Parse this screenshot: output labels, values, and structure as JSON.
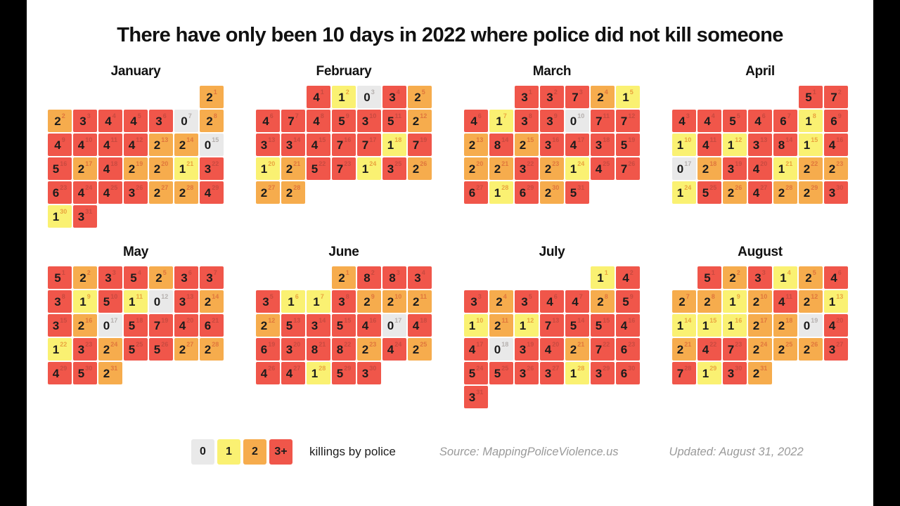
{
  "title": "There have only been 10 days in 2022 where police did not kill someone",
  "legend": {
    "items": [
      {
        "label": "0",
        "category": "zero"
      },
      {
        "label": "1",
        "category": "one"
      },
      {
        "label": "2",
        "category": "two"
      },
      {
        "label": "3+",
        "category": "three_plus"
      }
    ],
    "label": "killings by police"
  },
  "footer": {
    "source": "Source: MappingPoliceViolence.us",
    "updated": "Updated: August 31, 2022"
  },
  "colors": {
    "zero": "#E9E9E9",
    "one": "#FAF172",
    "two": "#F6AC4D",
    "three_plus": "#F0564A",
    "sup_zero": "#B5B0AE",
    "sup_one": "#E9A33E",
    "sup_two": "#E0763C",
    "sup_three_plus": "#C94A40"
  },
  "chart_data": {
    "type": "heatmap",
    "subtype": "calendar-heatmap",
    "title": "There have only been 10 days in 2022 where police did not kill someone",
    "unit": "killings by police per day",
    "year": 2022,
    "week_starts_on": "Sunday",
    "bins": [
      {
        "label": "0",
        "category": "zero"
      },
      {
        "label": "1",
        "category": "one"
      },
      {
        "label": "2",
        "category": "two"
      },
      {
        "label": "3+",
        "category": "three_plus"
      }
    ],
    "months": [
      {
        "name": "January",
        "first_day_col": 6,
        "days_in_month": 31,
        "values": [
          2,
          2,
          3,
          4,
          4,
          3,
          0,
          2,
          4,
          4,
          4,
          4,
          2,
          2,
          0,
          5,
          2,
          4,
          2,
          2,
          1,
          3,
          6,
          4,
          4,
          3,
          2,
          2,
          4,
          1,
          3
        ]
      },
      {
        "name": "February",
        "first_day_col": 2,
        "days_in_month": 28,
        "values": [
          4,
          1,
          0,
          3,
          2,
          4,
          7,
          4,
          5,
          3,
          5,
          2,
          3,
          3,
          4,
          7,
          7,
          1,
          7,
          1,
          2,
          5,
          7,
          1,
          3,
          2,
          2,
          2
        ]
      },
      {
        "name": "March",
        "first_day_col": 2,
        "days_in_month": 31,
        "values": [
          3,
          3,
          7,
          2,
          1,
          4,
          1,
          3,
          3,
          0,
          7,
          7,
          2,
          8,
          2,
          3,
          4,
          3,
          5,
          2,
          2,
          3,
          2,
          1,
          4,
          7,
          6,
          1,
          6,
          2,
          5
        ]
      },
      {
        "name": "April",
        "first_day_col": 5,
        "days_in_month": 30,
        "values": [
          5,
          7,
          4,
          4,
          5,
          4,
          6,
          1,
          6,
          1,
          4,
          1,
          3,
          8,
          1,
          4,
          0,
          2,
          3,
          4,
          1,
          2,
          2,
          1,
          5,
          2,
          4,
          2,
          2,
          3
        ]
      },
      {
        "name": "May",
        "first_day_col": 0,
        "days_in_month": 31,
        "values": [
          5,
          2,
          3,
          5,
          2,
          3,
          3,
          3,
          1,
          5,
          1,
          0,
          3,
          2,
          3,
          2,
          0,
          5,
          7,
          4,
          6,
          1,
          3,
          2,
          5,
          5,
          2,
          2,
          4,
          5,
          2
        ]
      },
      {
        "name": "June",
        "first_day_col": 3,
        "days_in_month": 30,
        "values": [
          2,
          8,
          8,
          3,
          3,
          1,
          1,
          3,
          2,
          2,
          2,
          2,
          5,
          3,
          5,
          4,
          0,
          4,
          6,
          3,
          8,
          8,
          2,
          4,
          2,
          4,
          4,
          1,
          5,
          3
        ]
      },
      {
        "name": "July",
        "first_day_col": 5,
        "days_in_month": 31,
        "values": [
          1,
          4,
          3,
          2,
          3,
          4,
          4,
          2,
          5,
          1,
          2,
          1,
          7,
          5,
          5,
          4,
          4,
          0,
          3,
          4,
          2,
          7,
          6,
          5,
          5,
          3,
          3,
          1,
          3,
          6,
          3
        ]
      },
      {
        "name": "August",
        "first_day_col": 1,
        "days_in_month": 31,
        "values": [
          5,
          2,
          3,
          1,
          2,
          4,
          2,
          2,
          1,
          2,
          4,
          2,
          1,
          1,
          1,
          1,
          2,
          2,
          0,
          4,
          2,
          4,
          7,
          2,
          2,
          2,
          3,
          7,
          1,
          3,
          2
        ]
      }
    ]
  }
}
